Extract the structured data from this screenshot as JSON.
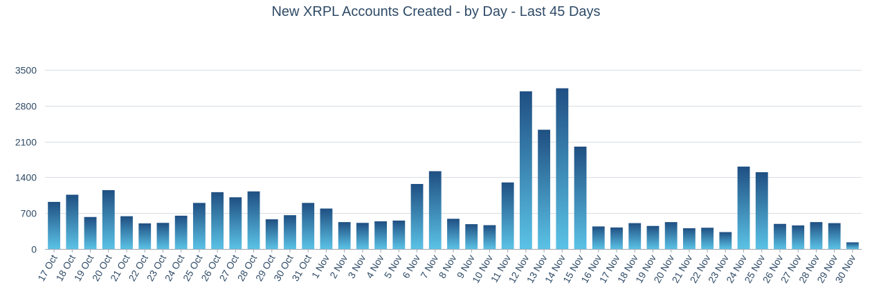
{
  "chart_data": {
    "type": "bar",
    "title": "New XRPL Accounts Created - by Day - Last 45 Days",
    "xlabel": "",
    "ylabel": "",
    "ylim": [
      0,
      3500
    ],
    "yticks": [
      0,
      700,
      1400,
      2100,
      2800,
      3500
    ],
    "grid": true,
    "legend": "none",
    "colors": {
      "bar_top": "#1f4f82",
      "bar_bottom": "#5bc2e6",
      "grid": "#d8dde2",
      "axis": "#9aa5b1",
      "tick_text": "#2e4a66"
    },
    "categories": [
      "17 Oct",
      "18 Oct",
      "19 Oct",
      "20 Oct",
      "21 Oct",
      "22 Oct",
      "23 Oct",
      "24 Oct",
      "25 Oct",
      "26 Oct",
      "27 Oct",
      "28 Oct",
      "29 Oct",
      "30 Oct",
      "31 Oct",
      "1 Nov",
      "2 Nov",
      "3 Nov",
      "4 Nov",
      "5 Nov",
      "6 Nov",
      "7 Nov",
      "8 Nov",
      "9 Nov",
      "10 Nov",
      "11 Nov",
      "12 Nov",
      "13 Nov",
      "14 Nov",
      "15 Nov",
      "16 Nov",
      "17 Nov",
      "18 Nov",
      "19 Nov",
      "20 Nov",
      "21 Nov",
      "22 Nov",
      "23 Nov",
      "24 Nov",
      "25 Nov",
      "26 Nov",
      "27 Nov",
      "28 Nov",
      "29 Nov",
      "30 Nov"
    ],
    "values": [
      920,
      1060,
      625,
      1150,
      640,
      500,
      510,
      650,
      900,
      1110,
      1010,
      1125,
      580,
      660,
      900,
      790,
      525,
      510,
      540,
      555,
      1270,
      1520,
      590,
      485,
      465,
      1300,
      3080,
      2330,
      3140,
      2000,
      440,
      420,
      505,
      450,
      525,
      405,
      415,
      330,
      1610,
      1500,
      490,
      460,
      525,
      505,
      130
    ]
  }
}
